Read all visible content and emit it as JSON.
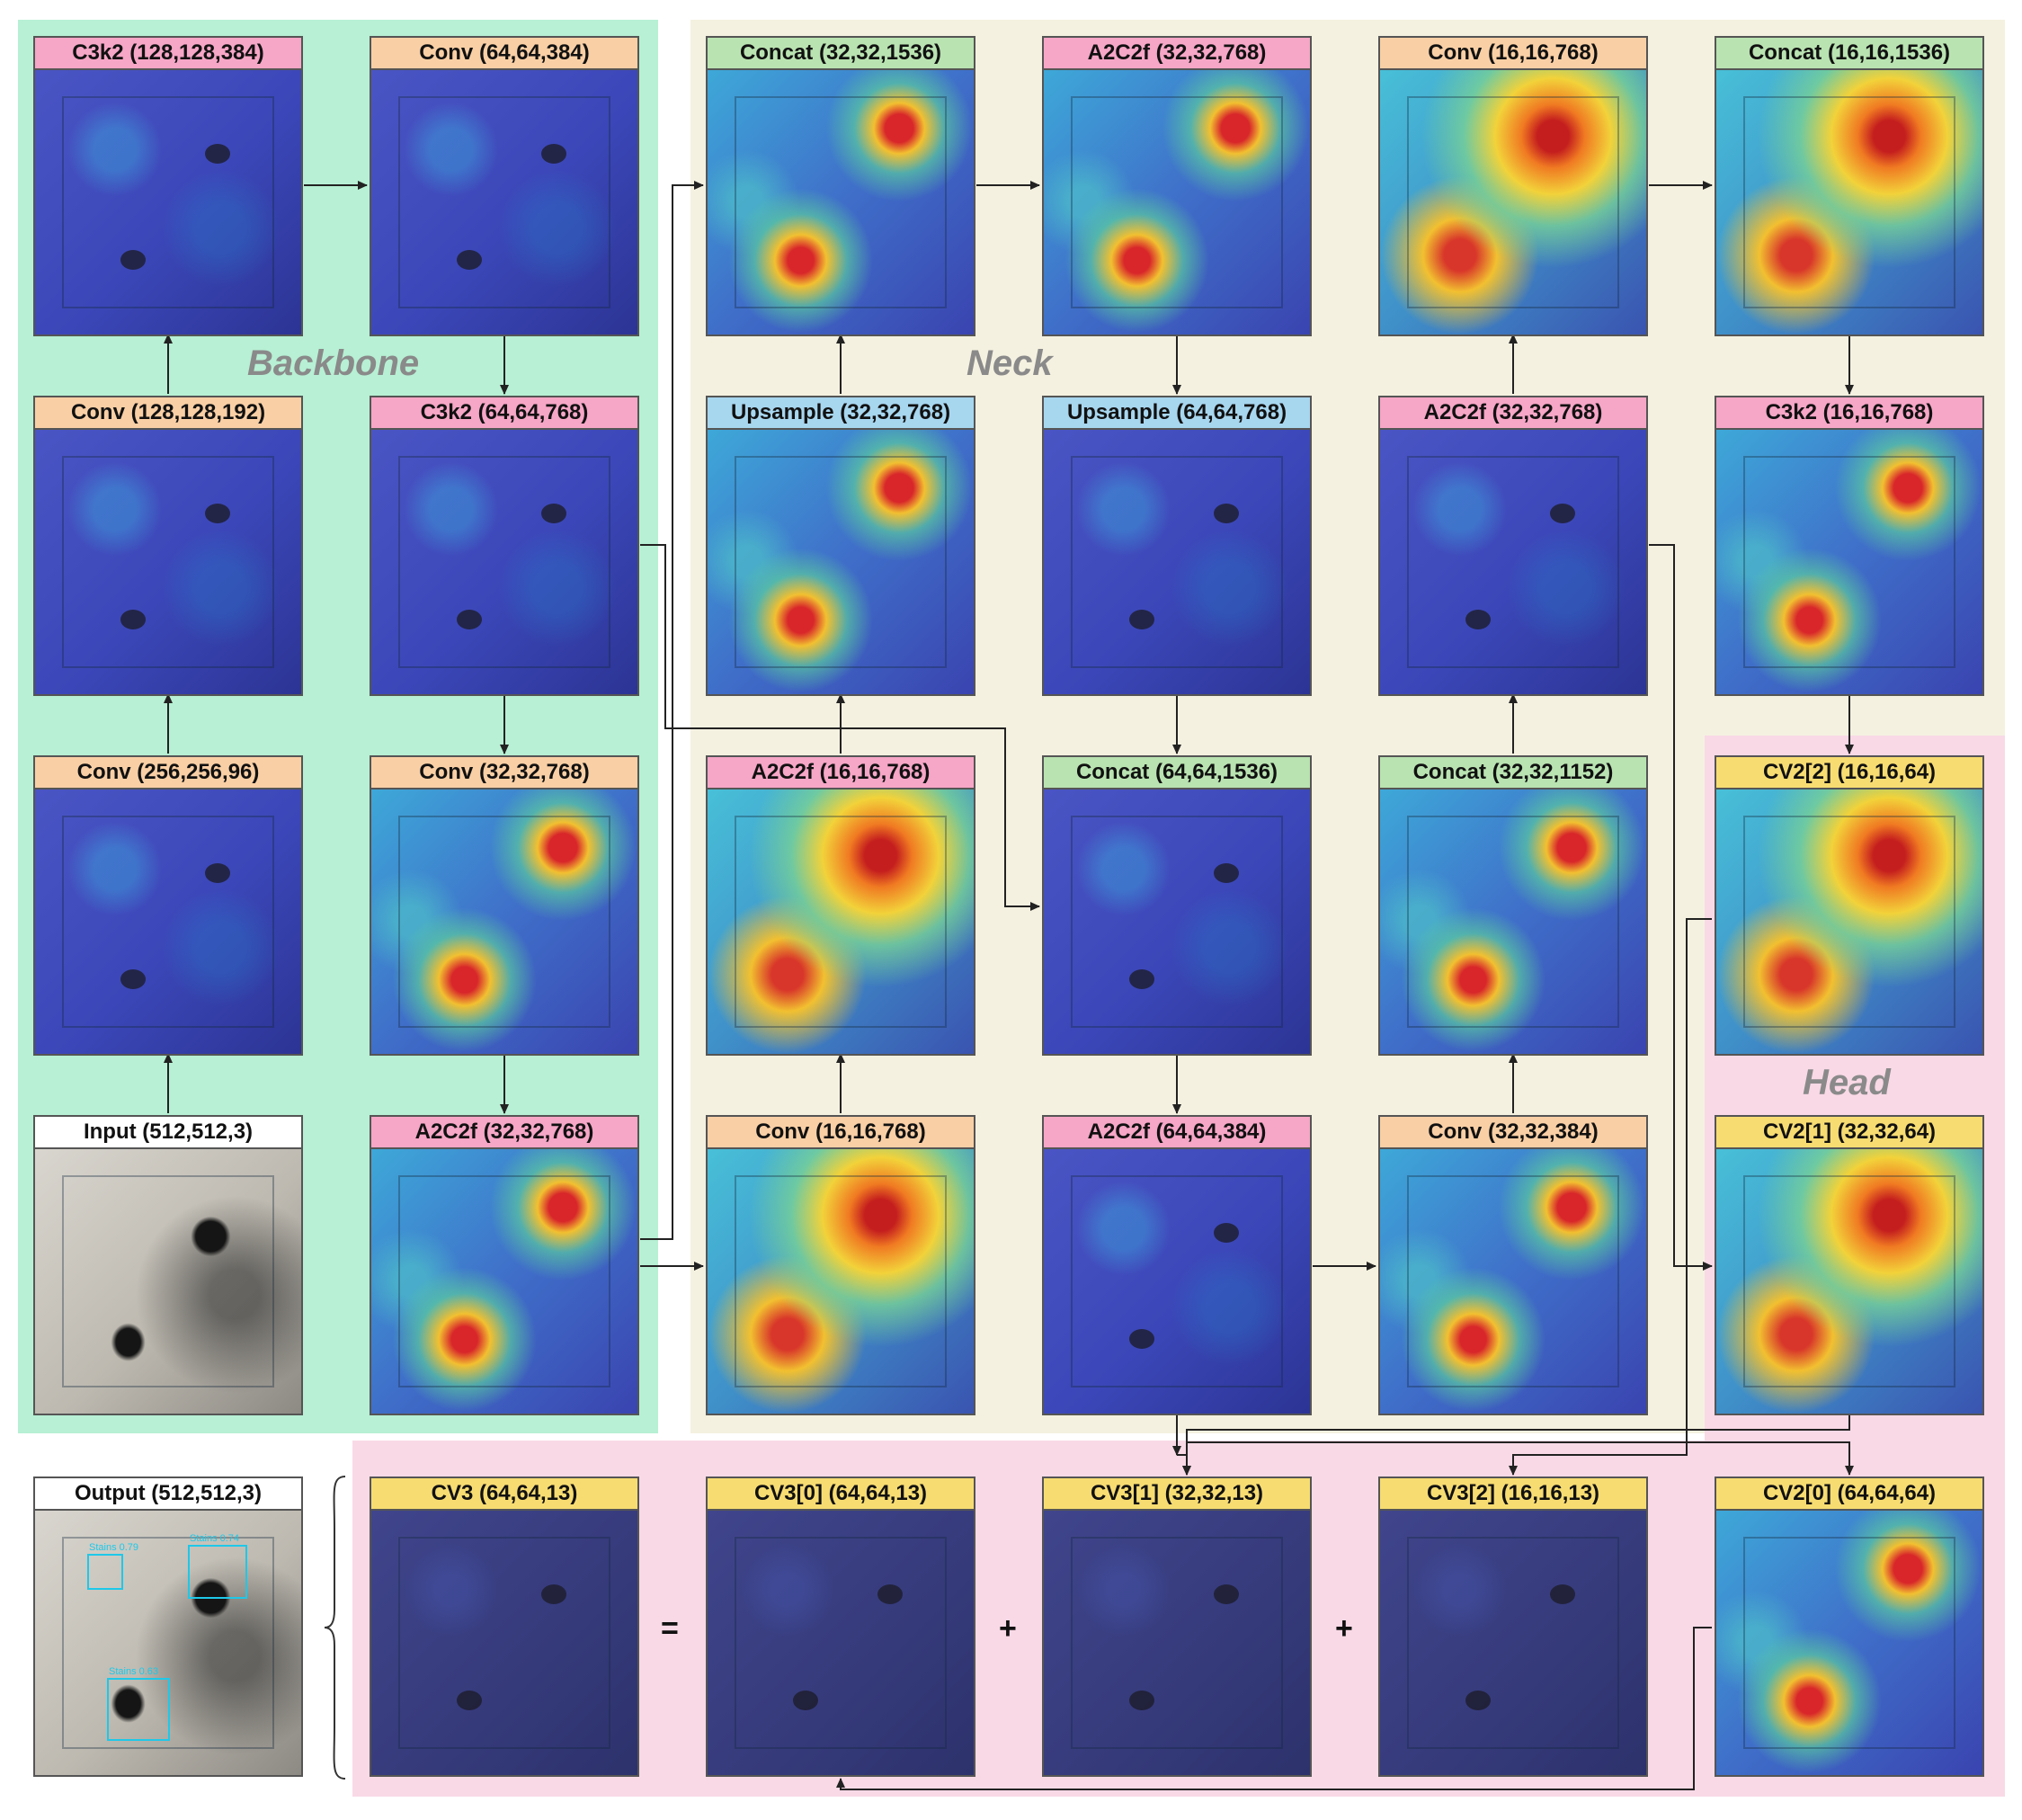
{
  "regions": {
    "backbone": {
      "title": "Backbone",
      "color": "#b7f0d4"
    },
    "neck": {
      "title": "Neck",
      "color": "#f4f1e0"
    },
    "head": {
      "title": "Head",
      "color": "#f9d9e6"
    }
  },
  "cards": {
    "c3k2_128": "C3k2 (128,128,384)",
    "conv_64_384": "Conv (64,64,384)",
    "concat_32_1536": "Concat (32,32,1536)",
    "a2c2f_32_768_top": "A2C2f (32,32,768)",
    "conv_16_768_top": "Conv (16,16,768)",
    "concat_16_1536": "Concat (16,16,1536)",
    "conv_128_192": "Conv (128,128,192)",
    "c3k2_64_768": "C3k2 (64,64,768)",
    "upsample_32_768": "Upsample (32,32,768)",
    "upsample_64_768": "Upsample (64,64,768)",
    "a2c2f_32_768_mid": "A2C2f (32,32,768)",
    "c3k2_16_768": "C3k2 (16,16,768)",
    "conv_256_96": "Conv (256,256,96)",
    "conv_32_768": "Conv (32,32,768)",
    "a2c2f_16_768": "A2C2f (16,16,768)",
    "concat_64_1536": "Concat (64,64,1536)",
    "concat_32_1152": "Concat (32,32,1152)",
    "cv2_2": "CV2[2] (16,16,64)",
    "input": "Input (512,512,3)",
    "a2c2f_32_768_bot": "A2C2f (32,32,768)",
    "conv_16_768_bot": "Conv (16,16,768)",
    "a2c2f_64_384": "A2C2f (64,64,384)",
    "conv_32_384": "Conv (32,32,384)",
    "cv2_1": "CV2[1] (32,32,64)",
    "output": "Output (512,512,3)",
    "cv3": "CV3 (64,64,13)",
    "cv3_0": "CV3[0] (64,64,13)",
    "cv3_1": "CV3[1] (32,32,13)",
    "cv3_2": "CV3[2] (16,16,13)",
    "cv2_0": "CV2[0] (64,64,64)"
  },
  "operators": {
    "equals": "=",
    "plus1": "+",
    "plus2": "+"
  },
  "detections": [
    {
      "label": "Stains 0.79"
    },
    {
      "label": "Stains 0.74"
    },
    {
      "label": "Stains 0.63"
    }
  ]
}
